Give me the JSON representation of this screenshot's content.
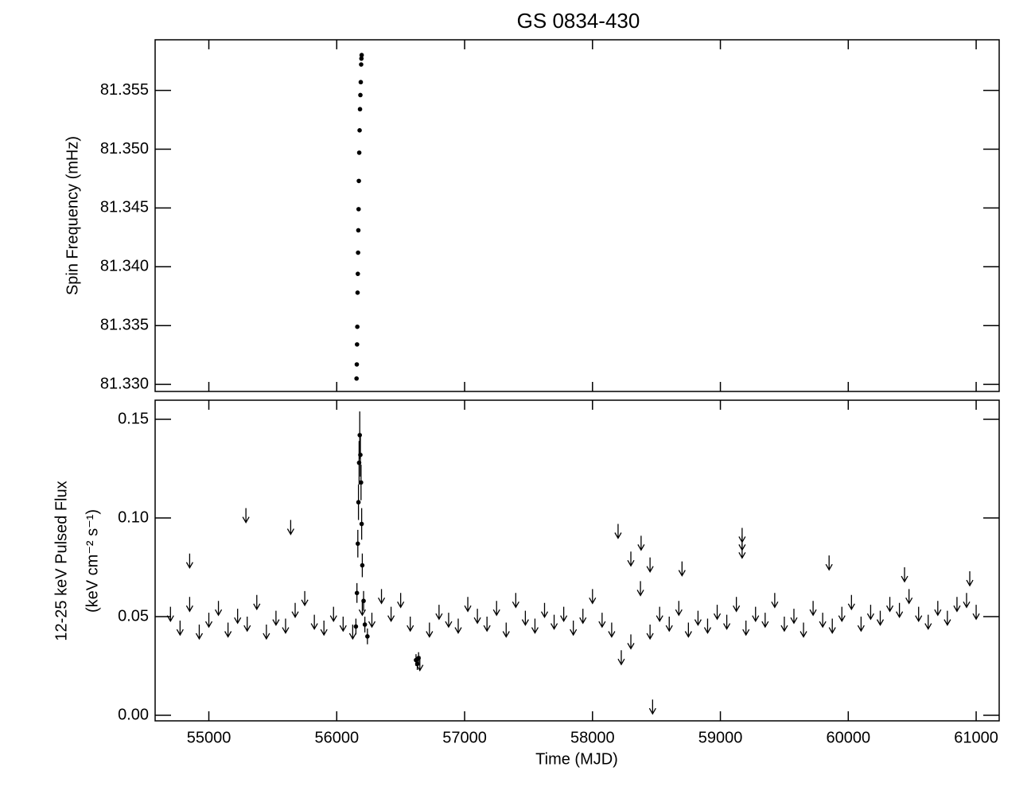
{
  "chart_data": [
    {
      "type": "scatter",
      "title": "GS 0834-430",
      "y_label": "Spin Frequency (mHz)",
      "xlim": [
        54580,
        61180
      ],
      "ylim": [
        81.3294,
        81.3593
      ],
      "xticks": [
        55000,
        56000,
        57000,
        58000,
        59000,
        60000,
        61000
      ],
      "xtick_labels": false,
      "yticks": [
        {
          "value": 81.33,
          "label": "81.330"
        },
        {
          "value": 81.335,
          "label": "81.335"
        },
        {
          "value": 81.34,
          "label": "81.340"
        },
        {
          "value": 81.345,
          "label": "81.345"
        },
        {
          "value": 81.35,
          "label": "81.350"
        },
        {
          "value": 81.355,
          "label": "81.355"
        }
      ],
      "series": [
        {
          "style": "point",
          "color": "#000000",
          "x": [
            56155,
            56157,
            56159,
            56161,
            56163,
            56165,
            56167,
            56169,
            56171,
            56173,
            56176,
            56179,
            56182,
            56185,
            56188,
            56191,
            56193,
            56195
          ],
          "values": [
            81.3305,
            81.3317,
            81.3334,
            81.3349,
            81.3378,
            81.3394,
            81.3412,
            81.3431,
            81.3449,
            81.3473,
            81.3497,
            81.3516,
            81.3534,
            81.3546,
            81.3557,
            81.3572,
            81.3577,
            81.358
          ]
        }
      ]
    },
    {
      "type": "scatter",
      "y_label": "12-25 keV Pulsed Flux",
      "y_label_units": "(keV cm⁻² s⁻¹)",
      "x_label": "Time (MJD)",
      "xlim": [
        54580,
        61180
      ],
      "ylim": [
        -0.0028,
        0.1597
      ],
      "xticks": [
        55000,
        56000,
        57000,
        58000,
        59000,
        60000,
        61000
      ],
      "xtick_labels": true,
      "yticks": [
        {
          "value": 0.0,
          "label": "0.00"
        },
        {
          "value": 0.05,
          "label": "0.05"
        },
        {
          "value": 0.1,
          "label": "0.10"
        },
        {
          "value": 0.15,
          "label": "0.15"
        }
      ],
      "series": [
        {
          "style": "upper_limit",
          "color": "#000000",
          "x": [
            54700,
            54775,
            54850,
            54925,
            55000,
            55075,
            55150,
            55225,
            55300,
            55375,
            55450,
            55525,
            55600,
            55675,
            55750,
            55825,
            55900,
            55975,
            56050,
            56125,
            56200,
            56275,
            56350,
            56425,
            56500,
            56575,
            56650,
            56725,
            56800,
            56875,
            56950,
            57025,
            57100,
            57175,
            57250,
            57325,
            57400,
            57475,
            57550,
            57625,
            57700,
            57775,
            57850,
            57925,
            58000,
            58075,
            58150,
            58225,
            58300,
            58375,
            58450,
            58525,
            58600,
            58675,
            58750,
            58825,
            58900,
            58975,
            59050,
            59125,
            59200,
            59275,
            59350,
            59425,
            59500,
            59575,
            59650,
            59725,
            59800,
            59875,
            59950,
            60025,
            60100,
            60175,
            60250,
            60325,
            60400,
            60475,
            60550,
            60625,
            60700,
            60775,
            60850,
            60925,
            61000,
            54850,
            55290,
            55640,
            58200,
            58300,
            58380,
            58450,
            58470,
            58700,
            59170,
            59170,
            59170,
            59850,
            60440,
            60950
          ],
          "values": [
            0.055,
            0.048,
            0.06,
            0.046,
            0.052,
            0.058,
            0.047,
            0.054,
            0.05,
            0.061,
            0.046,
            0.053,
            0.049,
            0.057,
            0.063,
            0.051,
            0.048,
            0.055,
            0.05,
            0.046,
            0.058,
            0.052,
            0.064,
            0.055,
            0.062,
            0.05,
            0.03,
            0.047,
            0.056,
            0.052,
            0.049,
            0.06,
            0.054,
            0.05,
            0.058,
            0.047,
            0.062,
            0.053,
            0.049,
            0.057,
            0.051,
            0.055,
            0.048,
            0.054,
            0.064,
            0.052,
            0.047,
            0.033,
            0.041,
            0.068,
            0.046,
            0.055,
            0.05,
            0.058,
            0.047,
            0.053,
            0.049,
            0.056,
            0.051,
            0.06,
            0.048,
            0.055,
            0.052,
            0.062,
            0.05,
            0.054,
            0.047,
            0.058,
            0.052,
            0.049,
            0.055,
            0.061,
            0.05,
            0.056,
            0.053,
            0.06,
            0.057,
            0.064,
            0.055,
            0.051,
            0.058,
            0.053,
            0.06,
            0.062,
            0.056,
            0.082,
            0.105,
            0.099,
            0.097,
            0.083,
            0.091,
            0.08,
            0.008,
            0.078,
            0.095,
            0.091,
            0.087,
            0.081,
            0.075,
            0.073
          ]
        },
        {
          "style": "point",
          "color": "#000000",
          "x": [
            56150,
            56158,
            56165,
            56170,
            56175,
            56180,
            56185,
            56190,
            56195,
            56200,
            56210,
            56220,
            56240,
            56620,
            56630,
            56640
          ],
          "values": [
            0.045,
            0.062,
            0.087,
            0.108,
            0.128,
            0.142,
            0.132,
            0.118,
            0.097,
            0.076,
            0.058,
            0.046,
            0.04,
            0.028,
            0.026,
            0.029
          ],
          "errors": [
            0.004,
            0.005,
            0.007,
            0.009,
            0.011,
            0.012,
            0.011,
            0.009,
            0.008,
            0.006,
            0.005,
            0.004,
            0.004,
            0.003,
            0.003,
            0.003
          ]
        }
      ]
    }
  ]
}
